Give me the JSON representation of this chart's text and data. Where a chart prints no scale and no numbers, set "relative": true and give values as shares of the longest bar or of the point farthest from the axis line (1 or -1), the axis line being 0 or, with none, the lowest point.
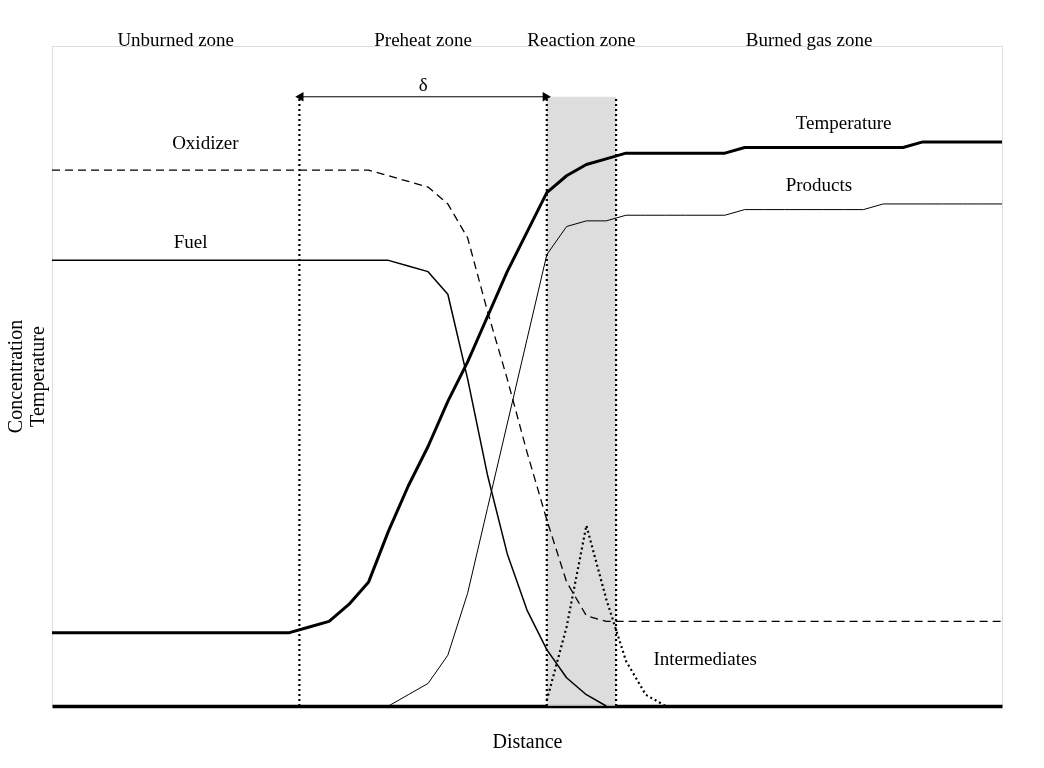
{
  "chart_data": {
    "type": "line",
    "relative": true,
    "xlabel": "Distance",
    "ylabel": "Concentration\nTemperature",
    "categories": [
      null,
      null,
      null,
      null,
      null,
      null,
      null,
      null,
      null,
      null,
      null,
      null,
      null,
      null,
      null,
      null,
      null,
      null,
      null,
      null,
      null,
      null,
      null,
      null,
      null,
      null,
      null,
      null,
      null,
      null,
      null,
      null,
      null,
      null,
      null,
      null,
      null,
      null,
      null,
      null,
      null,
      null,
      null,
      null,
      null,
      null,
      null,
      null,
      null
    ],
    "tick_labels": false,
    "grid": false,
    "marker": "none",
    "series": [
      {
        "name": "Oxidizer",
        "color": "#000000",
        "line_style": "dashed",
        "values": [
          0.95,
          0.95,
          0.95,
          0.95,
          0.95,
          0.95,
          0.95,
          0.95,
          0.95,
          0.95,
          0.95,
          0.95,
          0.95,
          0.95,
          0.95,
          0.95,
          0.95,
          0.94,
          0.93,
          0.92,
          0.89,
          0.83,
          0.7,
          0.58,
          0.45,
          0.33,
          0.22,
          0.16,
          0.15,
          0.15,
          0.15,
          0.15,
          0.15,
          0.15,
          0.15,
          0.15,
          0.15,
          0.15,
          0.15,
          0.15,
          0.15,
          0.15,
          0.15,
          0.15,
          0.15,
          0.15,
          0.15,
          0.15,
          0.15
        ]
      },
      {
        "name": "Fuel",
        "color": "#000000",
        "line_style": "solid",
        "values": [
          0.79,
          0.79,
          0.79,
          0.79,
          0.79,
          0.79,
          0.79,
          0.79,
          0.79,
          0.79,
          0.79,
          0.79,
          0.79,
          0.79,
          0.79,
          0.79,
          0.79,
          0.79,
          0.78,
          0.77,
          0.73,
          0.58,
          0.41,
          0.27,
          0.17,
          0.1,
          0.05,
          0.02,
          0.0,
          null,
          null,
          null,
          null,
          null,
          null,
          null,
          null,
          null,
          null,
          null,
          null,
          null,
          null,
          null,
          null,
          null,
          null,
          null,
          null
        ]
      },
      {
        "name": "Temperature",
        "color": "#000000",
        "line_style": "solid",
        "values": [
          0.13,
          0.13,
          0.13,
          0.13,
          0.13,
          0.13,
          0.13,
          0.13,
          0.13,
          0.13,
          0.13,
          0.13,
          0.13,
          0.14,
          0.15,
          0.18,
          0.22,
          0.31,
          0.39,
          0.46,
          0.54,
          0.61,
          0.69,
          0.77,
          0.84,
          0.91,
          0.94,
          0.96,
          0.97,
          0.98,
          0.98,
          0.98,
          0.98,
          0.98,
          0.98,
          0.99,
          0.99,
          0.99,
          0.99,
          0.99,
          0.99,
          0.99,
          0.99,
          0.99,
          1.0,
          1.0,
          1.0,
          1.0,
          1.0
        ]
      },
      {
        "name": "Products",
        "color": "#000000",
        "line_style": "solid",
        "values": [
          null,
          null,
          null,
          null,
          null,
          null,
          null,
          null,
          null,
          null,
          null,
          null,
          null,
          null,
          null,
          null,
          0.0,
          0.0,
          0.02,
          0.04,
          0.09,
          0.2,
          0.35,
          0.5,
          0.65,
          0.8,
          0.85,
          0.86,
          0.86,
          0.87,
          0.87,
          0.87,
          0.87,
          0.87,
          0.87,
          0.88,
          0.88,
          0.88,
          0.88,
          0.88,
          0.88,
          0.88,
          0.89,
          0.89,
          0.89,
          0.89,
          0.89,
          0.89,
          0.89
        ]
      },
      {
        "name": "Intermediates",
        "color": "#000000",
        "line_style": "dotted",
        "values": [
          null,
          null,
          null,
          null,
          null,
          null,
          null,
          null,
          null,
          null,
          null,
          null,
          null,
          null,
          null,
          null,
          null,
          null,
          null,
          null,
          null,
          null,
          null,
          null,
          null,
          0.01,
          0.14,
          0.32,
          0.19,
          0.08,
          0.02,
          0.0,
          null,
          null,
          null,
          null,
          null,
          null,
          null,
          null,
          null,
          null,
          null,
          null,
          null,
          null,
          null,
          null,
          null
        ]
      }
    ],
    "annotations": [
      "Unburned zone",
      "Preheat zone",
      "Reaction zone",
      "Burned gas zone",
      "δ"
    ]
  }
}
